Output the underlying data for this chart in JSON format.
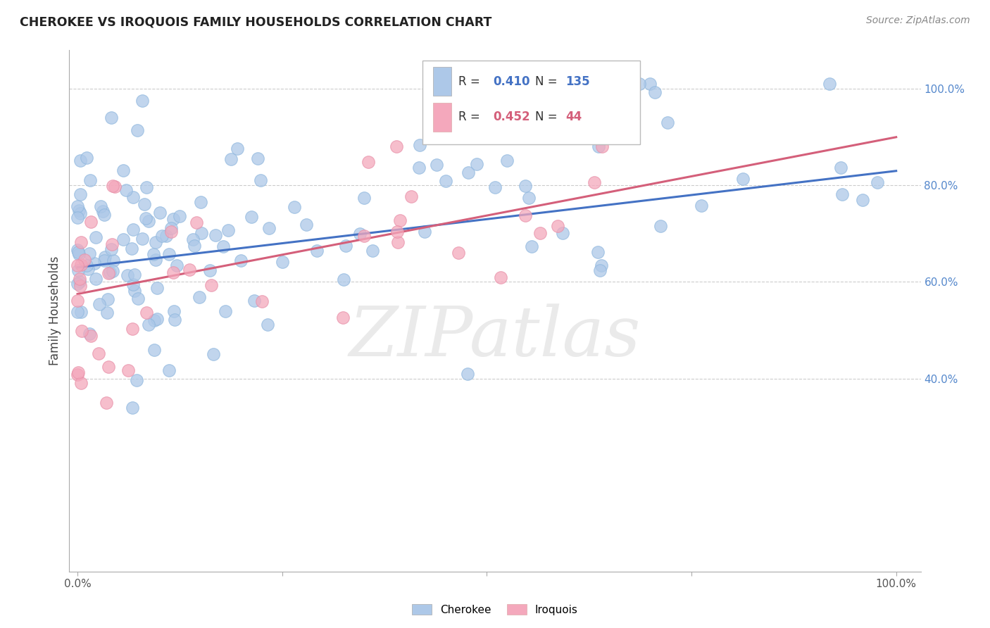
{
  "title": "CHEROKEE VS IROQUOIS FAMILY HOUSEHOLDS CORRELATION CHART",
  "source": "Source: ZipAtlas.com",
  "ylabel": "Family Households",
  "cherokee_R": 0.41,
  "cherokee_N": 135,
  "iroquois_R": 0.452,
  "iroquois_N": 44,
  "cherokee_color": "#adc8e8",
  "iroquois_color": "#f4a8bc",
  "cherokee_line_color": "#4472c4",
  "iroquois_line_color": "#d45f7a",
  "watermark": "ZIPatlas",
  "grid_color": "#cccccc",
  "right_tick_color": "#5588cc"
}
